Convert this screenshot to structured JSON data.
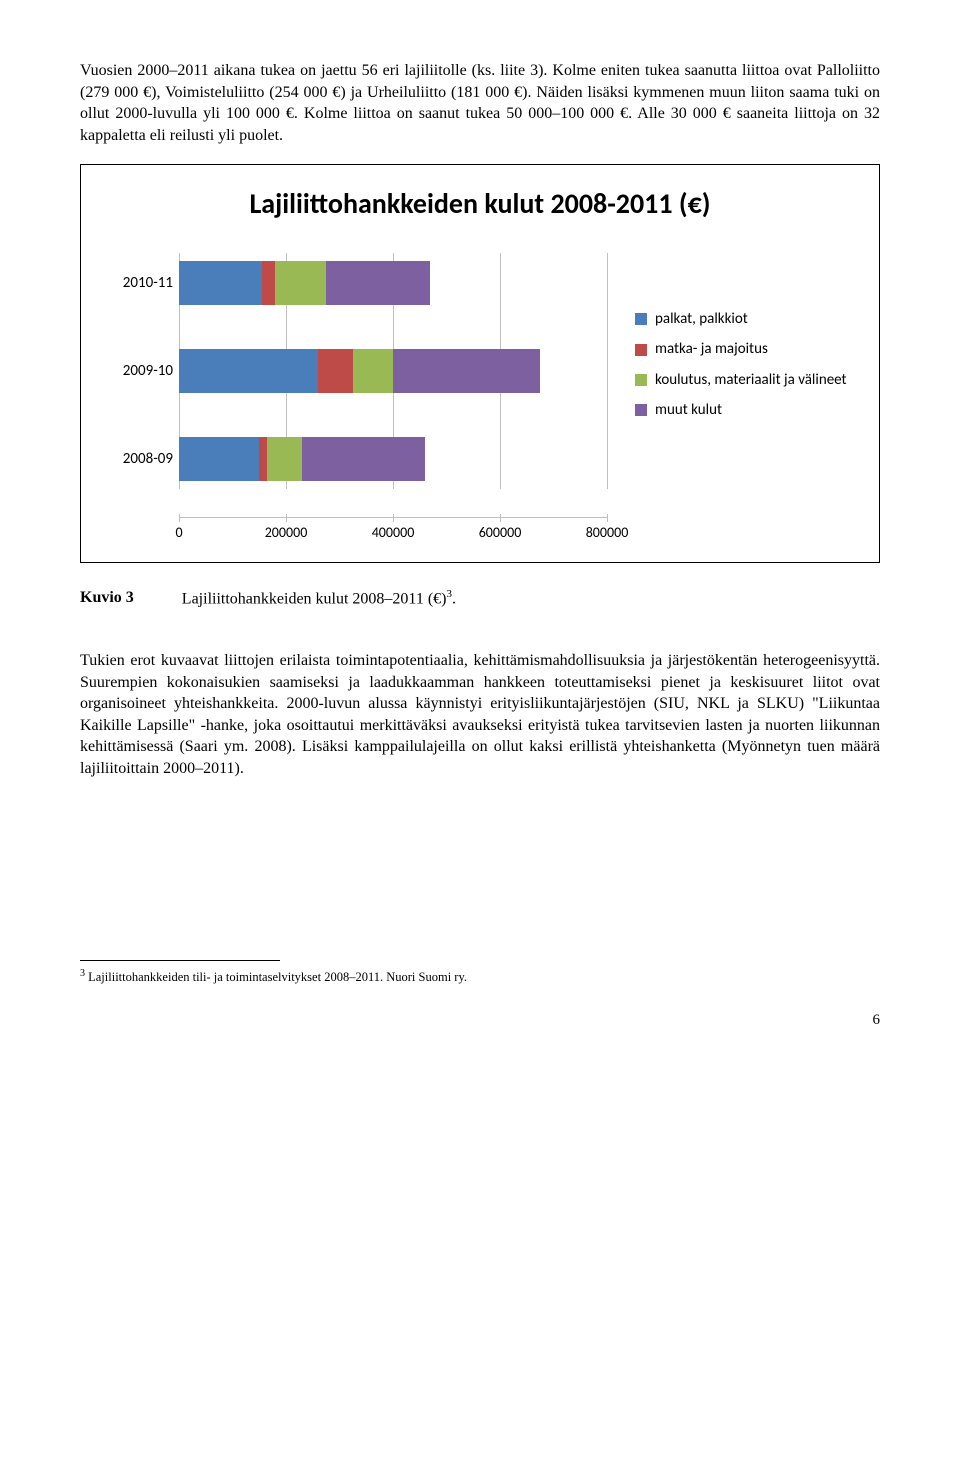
{
  "para1": "Vuosien 2000–2011 aikana tukea on jaettu 56 eri lajiliitolle (ks. liite 3). Kolme eniten tukea saanutta liittoa ovat Palloliitto (279 000 €), Voimisteluliitto (254 000 €) ja Urheiluliitto (181 000 €). Näiden lisäksi kymmenen muun liiton saama tuki on ollut 2000-luvulla yli 100 000 €. Kolme liittoa on saanut tukea 50 000–100 000 €. Alle 30 000 € saaneita liittoja on 32 kappaletta eli reilusti yli puolet.",
  "chart": {
    "title": "Lajiliittohankkeiden kulut 2008-2011 (€)",
    "xmax": 800000,
    "xticks": [
      0,
      200000,
      400000,
      600000,
      800000
    ],
    "series_colors": {
      "palkat": "#4a7ebb",
      "matka": "#be4b48",
      "koulutus": "#98b954",
      "muut": "#7d60a0"
    },
    "legend": [
      {
        "key": "palkat",
        "label": "palkat, palkkiot"
      },
      {
        "key": "matka",
        "label": "matka- ja majoitus"
      },
      {
        "key": "koulutus",
        "label": "koulutus, materiaalit ja välineet"
      },
      {
        "key": "muut",
        "label": "muut kulut"
      }
    ],
    "rows": [
      {
        "label": "2010-11",
        "values": {
          "palkat": 155000,
          "matka": 25000,
          "koulutus": 95000,
          "muut": 195000
        }
      },
      {
        "label": "2009-10",
        "values": {
          "palkat": 260000,
          "matka": 65000,
          "koulutus": 75000,
          "muut": 275000
        }
      },
      {
        "label": "2008-09",
        "values": {
          "palkat": 150000,
          "matka": 15000,
          "koulutus": 65000,
          "muut": 230000
        }
      }
    ]
  },
  "caption": {
    "key": "Kuvio 3",
    "text": "Lajiliittohankkeiden kulut 2008–2011 (€)",
    "sup": "3",
    "tail": "."
  },
  "para2": "Tukien erot kuvaavat liittojen erilaista toimintapotentiaalia, kehittämismahdollisuuksia ja järjestökentän heterogeenisyyttä. Suurempien kokonaisukien saamiseksi ja laadukkaamman hankkeen toteuttamiseksi pienet ja keskisuuret liitot ovat organisoineet yhteishankkeita. 2000-luvun alussa käynnistyi erityisliikuntajärjestöjen (SIU, NKL ja SLKU) \"Liikuntaa Kaikille Lapsille\" -hanke, joka osoittautui merkittäväksi avaukseksi erityistä tukea tarvitsevien lasten ja nuorten liikunnan kehittämisessä (Saari ym. 2008). Lisäksi kamppailulajeilla on ollut kaksi erillistä yhteishanketta (Myönnetyn tuen määrä lajiliitoittain 2000–2011).",
  "footnote": {
    "num": "3",
    "text": " Lajiliittohankkeiden tili- ja toimintaselvitykset 2008–2011. Nuori Suomi ry."
  },
  "pagenum": "6"
}
